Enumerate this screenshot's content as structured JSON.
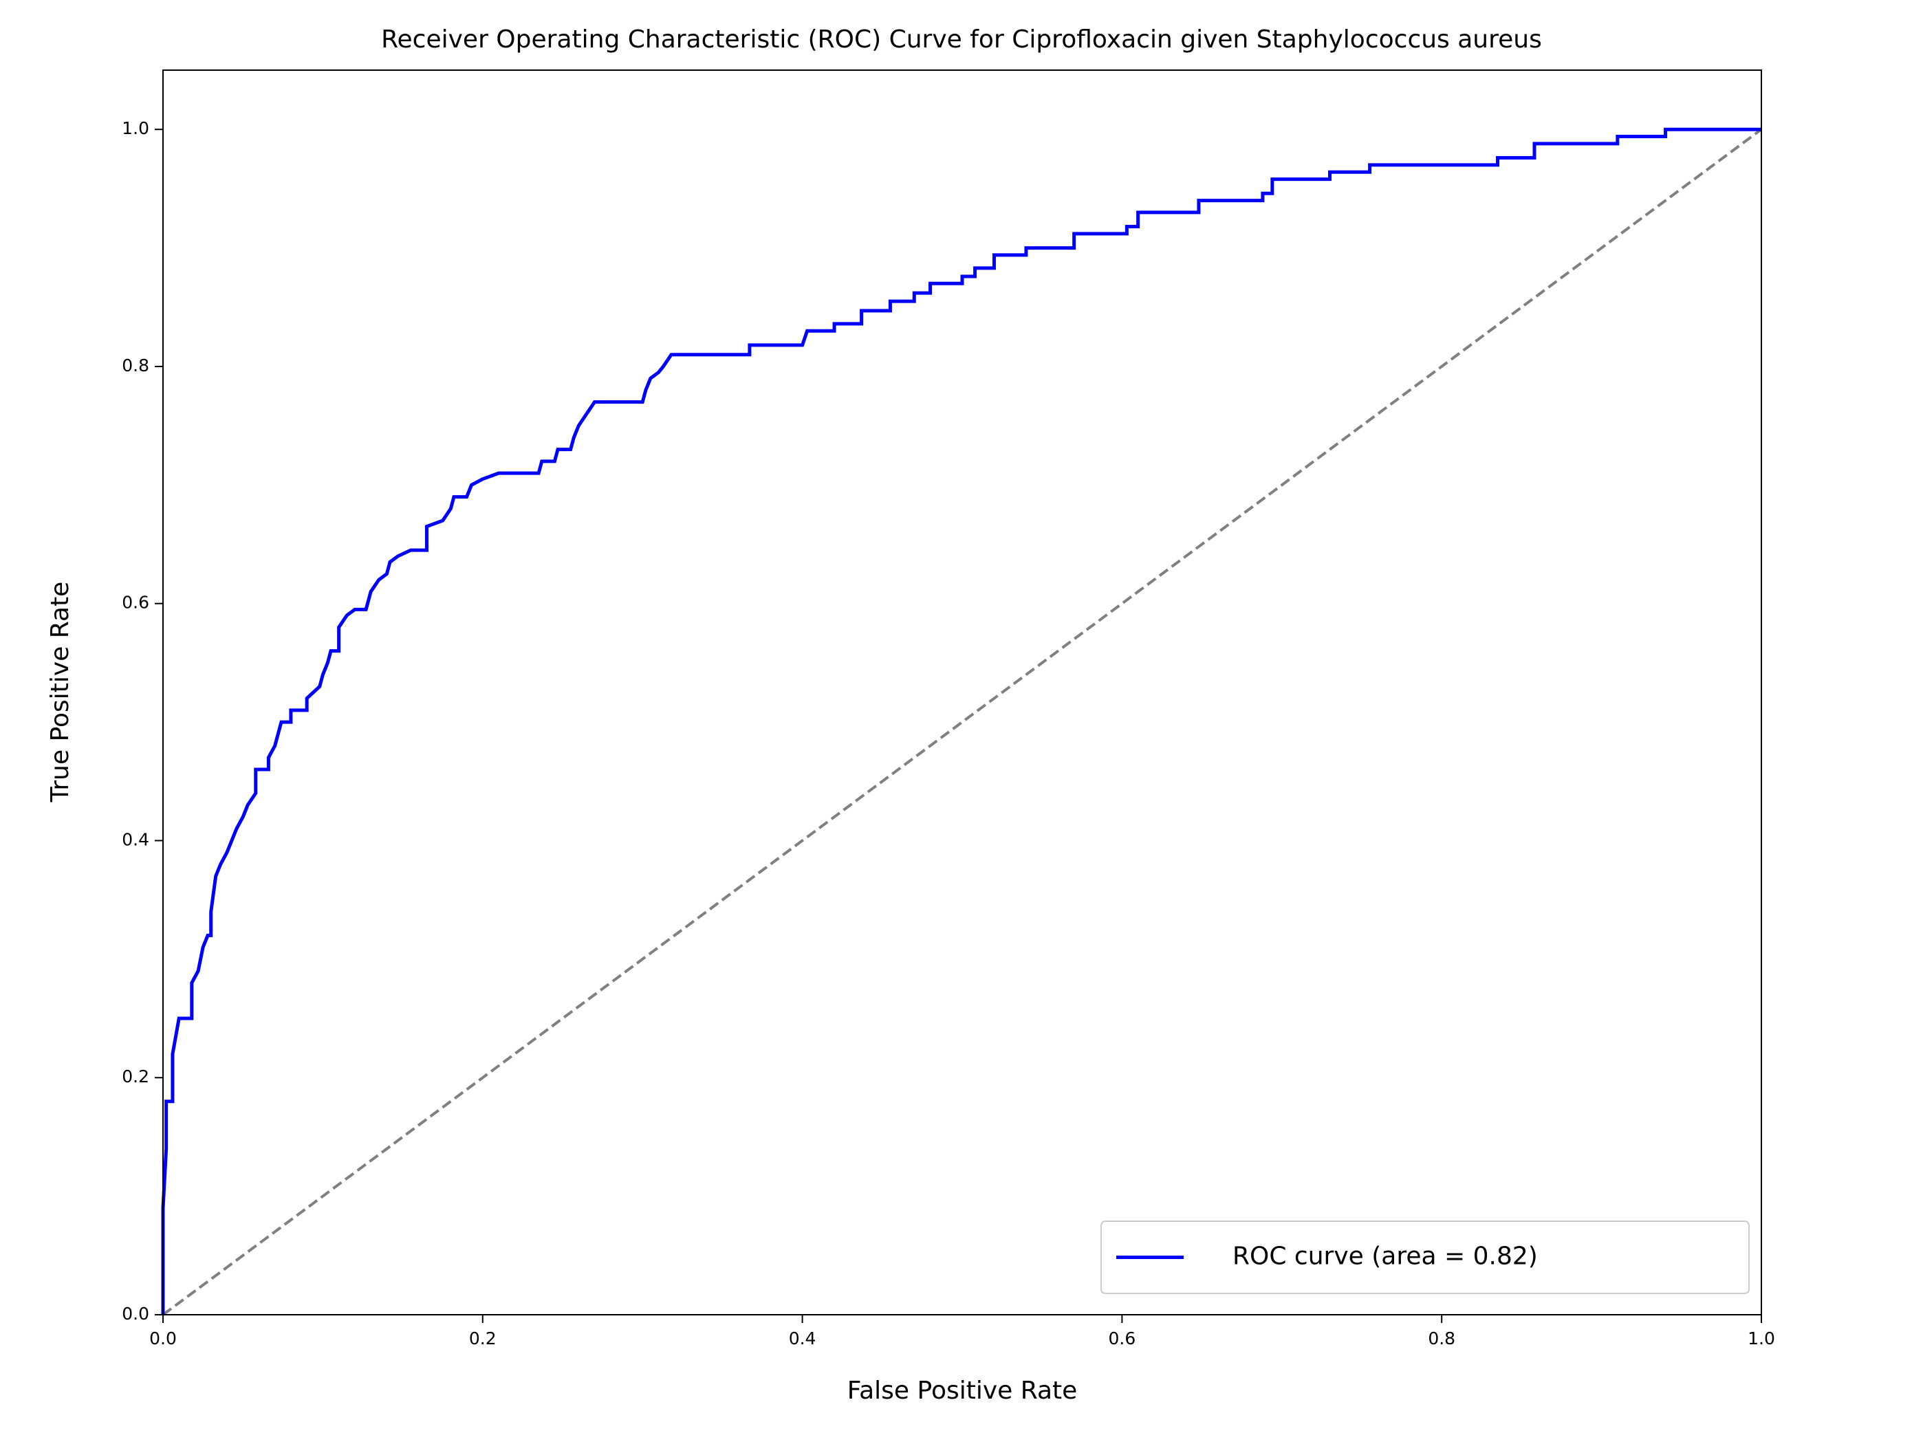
{
  "chart_data": {
    "type": "line",
    "title": "Receiver Operating Characteristic (ROC) Curve for Ciprofloxacin given Staphylococcus aureus",
    "x_label": "False Positive Rate",
    "y_label": "True Positive Rate",
    "xlim": [
      0,
      1
    ],
    "ylim": [
      0,
      1.05
    ],
    "xticks": [
      {
        "value": 0,
        "label": "0.0"
      },
      0.2,
      0.4,
      0.6,
      0.8,
      {
        "value": 1,
        "label": "1.0"
      }
    ],
    "yticks": [
      {
        "value": 0,
        "label": "0.0"
      },
      0.2,
      0.4,
      0.6,
      0.8,
      {
        "value": 1,
        "label": "1.0"
      }
    ],
    "legend": "lower right",
    "series": [
      {
        "name": "ROC curve (area = 0.82)",
        "color": "#0000ff",
        "x": [
          0,
          0,
          0.002,
          0.002,
          0.006,
          0.006,
          0.01,
          0.018,
          0.018,
          0.022,
          0.025,
          0.028,
          0.03,
          0.03,
          0.033,
          0.036,
          0.04,
          0.043,
          0.046,
          0.05,
          0.053,
          0.058,
          0.058,
          0.066,
          0.066,
          0.07,
          0.072,
          0.074,
          0.08,
          0.08,
          0.09,
          0.09,
          0.098,
          0.1,
          0.103,
          0.105,
          0.11,
          0.11,
          0.115,
          0.12,
          0.127,
          0.13,
          0.135,
          0.14,
          0.142,
          0.147,
          0.155,
          0.165,
          0.165,
          0.175,
          0.18,
          0.182,
          0.19,
          0.193,
          0.2,
          0.21,
          0.235,
          0.237,
          0.245,
          0.247,
          0.255,
          0.257,
          0.26,
          0.265,
          0.27,
          0.3,
          0.302,
          0.305,
          0.31,
          0.313,
          0.318,
          0.367,
          0.367,
          0.4,
          0.403,
          0.42,
          0.42,
          0.437,
          0.437,
          0.455,
          0.455,
          0.47,
          0.47,
          0.48,
          0.48,
          0.5,
          0.5,
          0.508,
          0.508,
          0.52,
          0.52,
          0.54,
          0.54,
          0.57,
          0.57,
          0.603,
          0.603,
          0.61,
          0.61,
          0.648,
          0.648,
          0.688,
          0.688,
          0.694,
          0.694,
          0.73,
          0.73,
          0.755,
          0.755,
          0.835,
          0.835,
          0.858,
          0.858,
          0.91,
          0.91,
          0.94,
          0.94,
          1
        ],
        "values": [
          0,
          0.09,
          0.14,
          0.18,
          0.18,
          0.22,
          0.25,
          0.25,
          0.28,
          0.29,
          0.31,
          0.32,
          0.32,
          0.34,
          0.37,
          0.38,
          0.39,
          0.4,
          0.41,
          0.42,
          0.43,
          0.44,
          0.46,
          0.46,
          0.47,
          0.48,
          0.49,
          0.5,
          0.5,
          0.51,
          0.51,
          0.52,
          0.53,
          0.54,
          0.55,
          0.56,
          0.56,
          0.58,
          0.59,
          0.595,
          0.595,
          0.61,
          0.62,
          0.625,
          0.635,
          0.64,
          0.645,
          0.645,
          0.665,
          0.67,
          0.68,
          0.69,
          0.69,
          0.7,
          0.705,
          0.71,
          0.71,
          0.72,
          0.72,
          0.73,
          0.73,
          0.74,
          0.75,
          0.76,
          0.77,
          0.77,
          0.78,
          0.79,
          0.795,
          0.8,
          0.81,
          0.81,
          0.818,
          0.818,
          0.83,
          0.83,
          0.836,
          0.836,
          0.847,
          0.847,
          0.855,
          0.855,
          0.862,
          0.862,
          0.87,
          0.87,
          0.876,
          0.876,
          0.883,
          0.883,
          0.894,
          0.894,
          0.9,
          0.9,
          0.912,
          0.912,
          0.918,
          0.918,
          0.93,
          0.93,
          0.94,
          0.94,
          0.946,
          0.946,
          0.958,
          0.958,
          0.964,
          0.964,
          0.97,
          0.97,
          0.976,
          0.976,
          0.988,
          0.988,
          0.994,
          0.994,
          1,
          1
        ]
      }
    ],
    "reference_line": {
      "color": "#808080",
      "dashed": true,
      "x": [
        0,
        1
      ],
      "values": [
        0,
        1
      ]
    }
  }
}
